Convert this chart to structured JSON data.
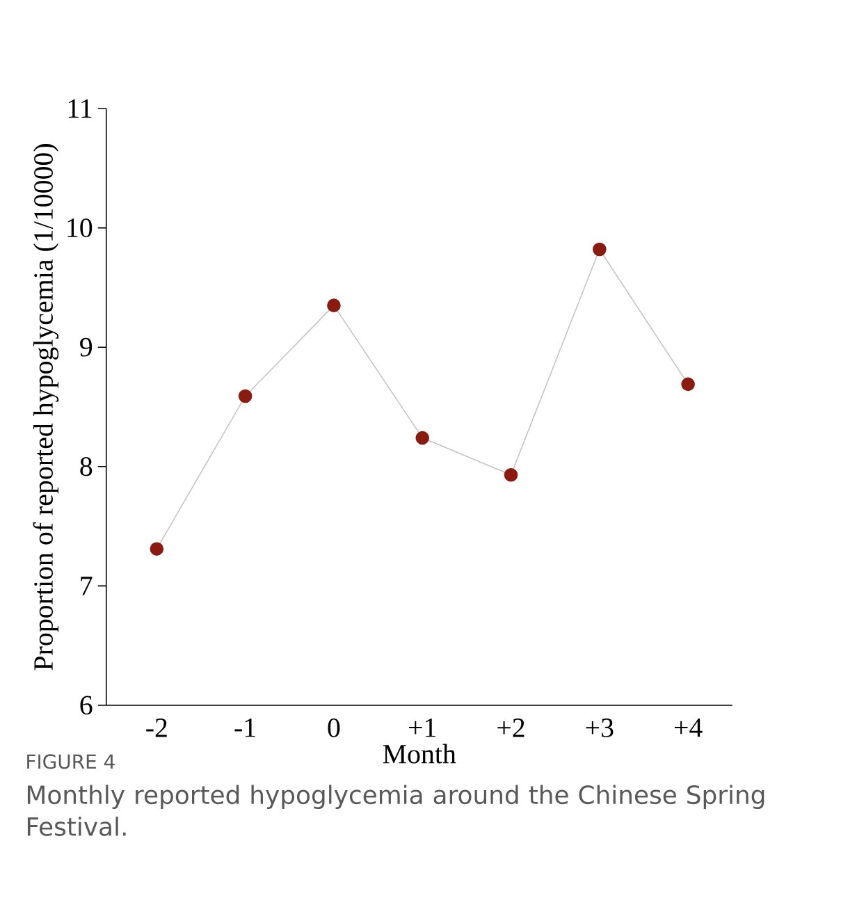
{
  "chart_data": {
    "type": "line",
    "title": "FIGURE 4",
    "annotations": [
      "Monthly reported hypoglycemia around the Chinese Spring Festival."
    ],
    "xlabel": "Month",
    "ylabel": "Proportion of reported hypoglycemia (1/10000)",
    "categories": [
      "-2",
      "-1",
      "0",
      "+1",
      "+2",
      "+3",
      "+4"
    ],
    "values": [
      7.31,
      8.59,
      9.35,
      8.24,
      7.93,
      9.82,
      8.69
    ],
    "color": "#8b1a10",
    "marker": "circle",
    "line_style": "solid",
    "ylim": [
      6,
      11
    ],
    "yticks": [
      6,
      7,
      8,
      9,
      10,
      11
    ]
  }
}
